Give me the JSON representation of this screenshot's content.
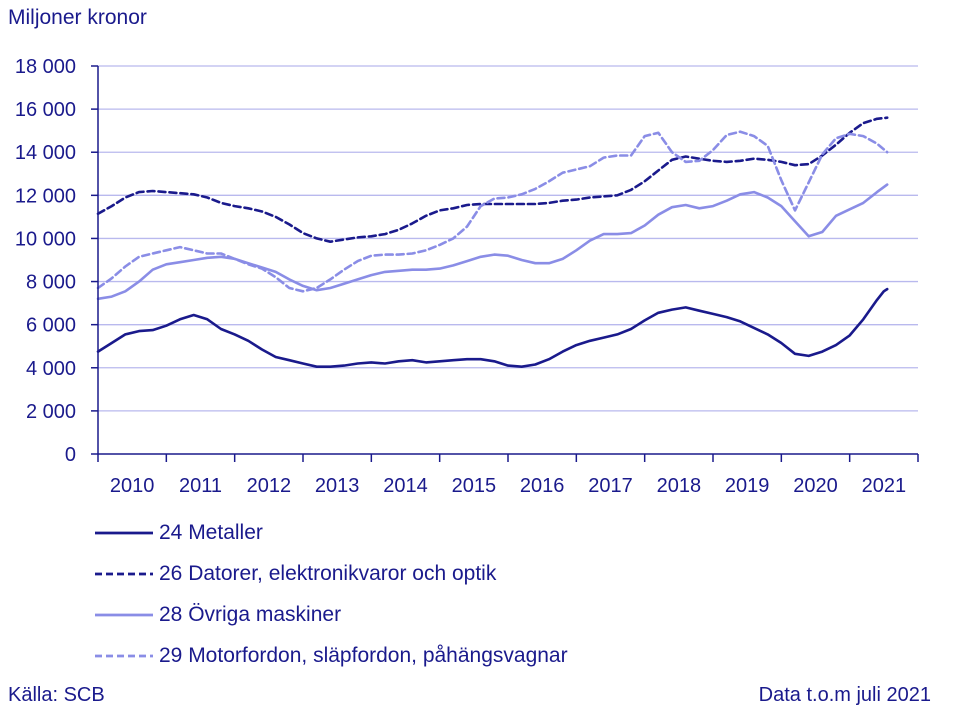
{
  "chart_data": {
    "type": "line",
    "ylabel": "Miljoner kronor",
    "ylim": [
      0,
      18000
    ],
    "yticks": [
      0,
      2000,
      4000,
      6000,
      8000,
      10000,
      12000,
      14000,
      16000,
      18000
    ],
    "ytick_labels": [
      "0",
      "2 000",
      "4 000",
      "6 000",
      "8 000",
      "10 000",
      "12 000",
      "14 000",
      "16 000",
      "18 000"
    ],
    "xlim": [
      2009.5,
      2021.5
    ],
    "xtick_labels": [
      "2010",
      "2011",
      "2012",
      "2013",
      "2014",
      "2015",
      "2016",
      "2017",
      "2018",
      "2019",
      "2020",
      "2021"
    ],
    "grid": "horizontal",
    "legend_placement": "bottom",
    "series": [
      {
        "name": "24 Metaller",
        "color": "#1a1a8c",
        "style": "solid",
        "points": [
          [
            2009.5,
            4750
          ],
          [
            2009.7,
            5150
          ],
          [
            2009.9,
            5550
          ],
          [
            2010.1,
            5700
          ],
          [
            2010.3,
            5750
          ],
          [
            2010.5,
            5950
          ],
          [
            2010.7,
            6250
          ],
          [
            2010.9,
            6450
          ],
          [
            2011.1,
            6250
          ],
          [
            2011.3,
            5800
          ],
          [
            2011.5,
            5550
          ],
          [
            2011.7,
            5250
          ],
          [
            2011.9,
            4850
          ],
          [
            2012.1,
            4500
          ],
          [
            2012.3,
            4350
          ],
          [
            2012.5,
            4200
          ],
          [
            2012.7,
            4050
          ],
          [
            2012.9,
            4050
          ],
          [
            2013.1,
            4100
          ],
          [
            2013.3,
            4200
          ],
          [
            2013.5,
            4250
          ],
          [
            2013.7,
            4200
          ],
          [
            2013.9,
            4300
          ],
          [
            2014.1,
            4350
          ],
          [
            2014.3,
            4250
          ],
          [
            2014.5,
            4300
          ],
          [
            2014.7,
            4350
          ],
          [
            2014.9,
            4400
          ],
          [
            2015.1,
            4400
          ],
          [
            2015.3,
            4300
          ],
          [
            2015.5,
            4100
          ],
          [
            2015.7,
            4050
          ],
          [
            2015.9,
            4150
          ],
          [
            2016.1,
            4400
          ],
          [
            2016.3,
            4750
          ],
          [
            2016.5,
            5050
          ],
          [
            2016.7,
            5250
          ],
          [
            2016.9,
            5400
          ],
          [
            2017.1,
            5550
          ],
          [
            2017.3,
            5800
          ],
          [
            2017.5,
            6200
          ],
          [
            2017.7,
            6550
          ],
          [
            2017.9,
            6700
          ],
          [
            2018.1,
            6800
          ],
          [
            2018.3,
            6650
          ],
          [
            2018.5,
            6500
          ],
          [
            2018.7,
            6350
          ],
          [
            2018.9,
            6150
          ],
          [
            2019.1,
            5850
          ],
          [
            2019.3,
            5550
          ],
          [
            2019.5,
            5150
          ],
          [
            2019.7,
            4650
          ],
          [
            2019.9,
            4550
          ],
          [
            2020.1,
            4750
          ],
          [
            2020.3,
            5050
          ],
          [
            2020.5,
            5500
          ],
          [
            2020.7,
            6250
          ],
          [
            2020.9,
            7150
          ],
          [
            2021.0,
            7550
          ],
          [
            2021.05,
            7650
          ]
        ]
      },
      {
        "name": "26 Datorer, elektronikvaror och optik",
        "color": "#1a1a8c",
        "style": "dashed",
        "points": [
          [
            2009.5,
            11150
          ],
          [
            2009.7,
            11500
          ],
          [
            2009.9,
            11900
          ],
          [
            2010.1,
            12150
          ],
          [
            2010.3,
            12200
          ],
          [
            2010.5,
            12150
          ],
          [
            2010.7,
            12100
          ],
          [
            2010.9,
            12050
          ],
          [
            2011.1,
            11900
          ],
          [
            2011.3,
            11650
          ],
          [
            2011.5,
            11500
          ],
          [
            2011.7,
            11400
          ],
          [
            2011.9,
            11250
          ],
          [
            2012.1,
            11000
          ],
          [
            2012.3,
            10650
          ],
          [
            2012.5,
            10250
          ],
          [
            2012.7,
            10000
          ],
          [
            2012.9,
            9850
          ],
          [
            2013.1,
            9950
          ],
          [
            2013.3,
            10050
          ],
          [
            2013.5,
            10100
          ],
          [
            2013.7,
            10200
          ],
          [
            2013.9,
            10400
          ],
          [
            2014.1,
            10700
          ],
          [
            2014.3,
            11050
          ],
          [
            2014.5,
            11300
          ],
          [
            2014.7,
            11400
          ],
          [
            2014.9,
            11550
          ],
          [
            2015.1,
            11600
          ],
          [
            2015.3,
            11600
          ],
          [
            2015.5,
            11600
          ],
          [
            2015.7,
            11600
          ],
          [
            2015.9,
            11600
          ],
          [
            2016.1,
            11650
          ],
          [
            2016.3,
            11750
          ],
          [
            2016.5,
            11800
          ],
          [
            2016.7,
            11900
          ],
          [
            2016.9,
            11950
          ],
          [
            2017.1,
            12000
          ],
          [
            2017.3,
            12250
          ],
          [
            2017.5,
            12650
          ],
          [
            2017.7,
            13150
          ],
          [
            2017.9,
            13650
          ],
          [
            2018.1,
            13800
          ],
          [
            2018.3,
            13700
          ],
          [
            2018.5,
            13600
          ],
          [
            2018.7,
            13550
          ],
          [
            2018.9,
            13600
          ],
          [
            2019.1,
            13700
          ],
          [
            2019.3,
            13650
          ],
          [
            2019.5,
            13550
          ],
          [
            2019.7,
            13400
          ],
          [
            2019.9,
            13450
          ],
          [
            2020.1,
            13850
          ],
          [
            2020.3,
            14350
          ],
          [
            2020.5,
            14900
          ],
          [
            2020.7,
            15350
          ],
          [
            2020.9,
            15550
          ],
          [
            2021.05,
            15600
          ]
        ]
      },
      {
        "name": "28 Övriga maskiner",
        "color": "#8a8de6",
        "style": "solid",
        "points": [
          [
            2009.5,
            7200
          ],
          [
            2009.7,
            7300
          ],
          [
            2009.9,
            7550
          ],
          [
            2010.1,
            8000
          ],
          [
            2010.3,
            8550
          ],
          [
            2010.5,
            8800
          ],
          [
            2010.7,
            8900
          ],
          [
            2010.9,
            9000
          ],
          [
            2011.1,
            9100
          ],
          [
            2011.3,
            9150
          ],
          [
            2011.5,
            9050
          ],
          [
            2011.7,
            8850
          ],
          [
            2011.9,
            8650
          ],
          [
            2012.1,
            8450
          ],
          [
            2012.3,
            8100
          ],
          [
            2012.5,
            7800
          ],
          [
            2012.7,
            7600
          ],
          [
            2012.9,
            7700
          ],
          [
            2013.1,
            7900
          ],
          [
            2013.3,
            8100
          ],
          [
            2013.5,
            8300
          ],
          [
            2013.7,
            8450
          ],
          [
            2013.9,
            8500
          ],
          [
            2014.1,
            8550
          ],
          [
            2014.3,
            8550
          ],
          [
            2014.5,
            8600
          ],
          [
            2014.7,
            8750
          ],
          [
            2014.9,
            8950
          ],
          [
            2015.1,
            9150
          ],
          [
            2015.3,
            9250
          ],
          [
            2015.5,
            9200
          ],
          [
            2015.7,
            9000
          ],
          [
            2015.9,
            8850
          ],
          [
            2016.1,
            8850
          ],
          [
            2016.3,
            9050
          ],
          [
            2016.5,
            9450
          ],
          [
            2016.7,
            9900
          ],
          [
            2016.9,
            10200
          ],
          [
            2017.1,
            10200
          ],
          [
            2017.3,
            10250
          ],
          [
            2017.5,
            10600
          ],
          [
            2017.7,
            11100
          ],
          [
            2017.9,
            11450
          ],
          [
            2018.1,
            11550
          ],
          [
            2018.3,
            11400
          ],
          [
            2018.5,
            11500
          ],
          [
            2018.7,
            11750
          ],
          [
            2018.9,
            12050
          ],
          [
            2019.1,
            12150
          ],
          [
            2019.3,
            11900
          ],
          [
            2019.5,
            11500
          ],
          [
            2019.7,
            10800
          ],
          [
            2019.9,
            10100
          ],
          [
            2020.1,
            10300
          ],
          [
            2020.3,
            11050
          ],
          [
            2020.5,
            11350
          ],
          [
            2020.7,
            11650
          ],
          [
            2020.9,
            12150
          ],
          [
            2021.05,
            12500
          ]
        ]
      },
      {
        "name": "29 Motorfordon, släpfordon, påhängsvagnar",
        "color": "#8a8de6",
        "style": "dashed",
        "points": [
          [
            2009.5,
            7700
          ],
          [
            2009.7,
            8150
          ],
          [
            2009.9,
            8700
          ],
          [
            2010.1,
            9150
          ],
          [
            2010.3,
            9300
          ],
          [
            2010.5,
            9450
          ],
          [
            2010.7,
            9600
          ],
          [
            2010.9,
            9450
          ],
          [
            2011.1,
            9300
          ],
          [
            2011.3,
            9300
          ],
          [
            2011.5,
            9050
          ],
          [
            2011.7,
            8800
          ],
          [
            2011.9,
            8600
          ],
          [
            2012.1,
            8200
          ],
          [
            2012.3,
            7700
          ],
          [
            2012.5,
            7550
          ],
          [
            2012.7,
            7700
          ],
          [
            2012.9,
            8100
          ],
          [
            2013.1,
            8550
          ],
          [
            2013.3,
            8950
          ],
          [
            2013.5,
            9200
          ],
          [
            2013.7,
            9250
          ],
          [
            2013.9,
            9250
          ],
          [
            2014.1,
            9300
          ],
          [
            2014.3,
            9450
          ],
          [
            2014.5,
            9700
          ],
          [
            2014.7,
            10000
          ],
          [
            2014.9,
            10550
          ],
          [
            2015.1,
            11500
          ],
          [
            2015.3,
            11850
          ],
          [
            2015.5,
            11900
          ],
          [
            2015.7,
            12050
          ],
          [
            2015.9,
            12300
          ],
          [
            2016.1,
            12650
          ],
          [
            2016.3,
            13050
          ],
          [
            2016.5,
            13200
          ],
          [
            2016.7,
            13350
          ],
          [
            2016.9,
            13750
          ],
          [
            2017.1,
            13850
          ],
          [
            2017.3,
            13850
          ],
          [
            2017.5,
            14750
          ],
          [
            2017.7,
            14900
          ],
          [
            2017.9,
            14000
          ],
          [
            2018.1,
            13550
          ],
          [
            2018.3,
            13600
          ],
          [
            2018.5,
            14100
          ],
          [
            2018.7,
            14800
          ],
          [
            2018.9,
            14950
          ],
          [
            2019.1,
            14750
          ],
          [
            2019.3,
            14300
          ],
          [
            2019.5,
            12700
          ],
          [
            2019.7,
            11300
          ],
          [
            2019.9,
            12600
          ],
          [
            2020.1,
            13900
          ],
          [
            2020.3,
            14650
          ],
          [
            2020.5,
            14850
          ],
          [
            2020.7,
            14750
          ],
          [
            2020.9,
            14400
          ],
          [
            2021.05,
            14000
          ]
        ]
      }
    ]
  },
  "source": "Källa: SCB",
  "note": "Data t.o.m juli 2021"
}
